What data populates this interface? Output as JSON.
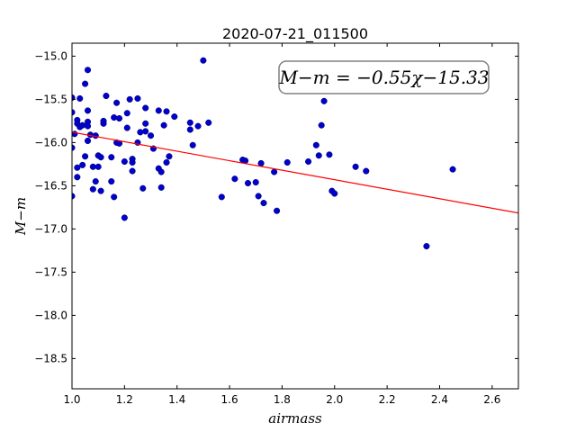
{
  "chart_data": {
    "type": "scatter",
    "title": "2020-07-21_011500",
    "xlabel": "airmass",
    "ylabel": "M−m",
    "xlim": [
      1.0,
      2.7
    ],
    "ylim": [
      -18.85,
      -14.85
    ],
    "x_ticks": [
      "1.0",
      "1.2",
      "1.4",
      "1.6",
      "1.8",
      "2.0",
      "2.2",
      "2.4",
      "2.6"
    ],
    "x_tick_values": [
      1.0,
      1.2,
      1.4,
      1.6,
      1.8,
      2.0,
      2.2,
      2.4,
      2.6
    ],
    "y_ticks": [
      "−15.0",
      "−15.5",
      "−16.0",
      "−16.5",
      "−17.0",
      "−17.5",
      "−18.0",
      "−18.5"
    ],
    "y_tick_values": [
      -15.0,
      -15.5,
      -16.0,
      -16.5,
      -17.0,
      -17.5,
      -18.0,
      -18.5
    ],
    "grid": false,
    "annotation": "M−m = −0.55χ−15.33",
    "annotation_position": "top-right",
    "fit": {
      "slope": -0.55,
      "intercept": -15.33,
      "color": "#ff0000"
    },
    "point_color": "#0000cc",
    "points": [
      [
        1.0,
        -15.48
      ],
      [
        1.0,
        -15.65
      ],
      [
        1.0,
        -16.06
      ],
      [
        1.0,
        -16.62
      ],
      [
        1.01,
        -15.9
      ],
      [
        1.02,
        -15.74
      ],
      [
        1.02,
        -15.78
      ],
      [
        1.03,
        -15.49
      ],
      [
        1.03,
        -15.82
      ],
      [
        1.02,
        -16.29
      ],
      [
        1.02,
        -16.4
      ],
      [
        1.04,
        -15.8
      ],
      [
        1.04,
        -16.26
      ],
      [
        1.05,
        -16.16
      ],
      [
        1.05,
        -15.32
      ],
      [
        1.06,
        -15.16
      ],
      [
        1.06,
        -15.63
      ],
      [
        1.06,
        -15.76
      ],
      [
        1.06,
        -15.81
      ],
      [
        1.07,
        -15.91
      ],
      [
        1.06,
        -15.98
      ],
      [
        1.08,
        -16.28
      ],
      [
        1.08,
        -16.54
      ],
      [
        1.09,
        -16.45
      ],
      [
        1.09,
        -15.92
      ],
      [
        1.1,
        -16.28
      ],
      [
        1.1,
        -16.15
      ],
      [
        1.11,
        -16.17
      ],
      [
        1.12,
        -15.78
      ],
      [
        1.12,
        -15.75
      ],
      [
        1.11,
        -16.56
      ],
      [
        1.13,
        -15.46
      ],
      [
        1.15,
        -16.45
      ],
      [
        1.15,
        -16.17
      ],
      [
        1.16,
        -15.71
      ],
      [
        1.16,
        -16.63
      ],
      [
        1.17,
        -15.54
      ],
      [
        1.17,
        -16.0
      ],
      [
        1.18,
        -15.72
      ],
      [
        1.18,
        -16.01
      ],
      [
        1.2,
        -16.87
      ],
      [
        1.2,
        -16.22
      ],
      [
        1.21,
        -15.66
      ],
      [
        1.21,
        -15.83
      ],
      [
        1.22,
        -15.5
      ],
      [
        1.23,
        -16.19
      ],
      [
        1.23,
        -16.23
      ],
      [
        1.23,
        -16.33
      ],
      [
        1.25,
        -15.49
      ],
      [
        1.25,
        -16.0
      ],
      [
        1.26,
        -15.88
      ],
      [
        1.27,
        -16.53
      ],
      [
        1.28,
        -15.6
      ],
      [
        1.28,
        -15.78
      ],
      [
        1.28,
        -15.87
      ],
      [
        1.3,
        -15.92
      ],
      [
        1.31,
        -16.07
      ],
      [
        1.33,
        -15.63
      ],
      [
        1.33,
        -16.3
      ],
      [
        1.34,
        -16.34
      ],
      [
        1.34,
        -16.52
      ],
      [
        1.35,
        -15.8
      ],
      [
        1.36,
        -15.64
      ],
      [
        1.36,
        -16.23
      ],
      [
        1.37,
        -16.16
      ],
      [
        1.39,
        -15.7
      ],
      [
        1.45,
        -15.77
      ],
      [
        1.45,
        -15.85
      ],
      [
        1.46,
        -16.03
      ],
      [
        1.48,
        -15.81
      ],
      [
        1.5,
        -15.05
      ],
      [
        1.52,
        -15.77
      ],
      [
        1.57,
        -16.63
      ],
      [
        1.62,
        -16.42
      ],
      [
        1.65,
        -16.2
      ],
      [
        1.66,
        -16.21
      ],
      [
        1.67,
        -16.47
      ],
      [
        1.7,
        -16.46
      ],
      [
        1.71,
        -16.62
      ],
      [
        1.72,
        -16.24
      ],
      [
        1.73,
        -16.7
      ],
      [
        1.77,
        -16.34
      ],
      [
        1.78,
        -16.79
      ],
      [
        1.82,
        -16.23
      ],
      [
        1.9,
        -16.22
      ],
      [
        1.93,
        -16.03
      ],
      [
        1.94,
        -16.15
      ],
      [
        1.95,
        -15.8
      ],
      [
        1.96,
        -15.52
      ],
      [
        1.98,
        -16.14
      ],
      [
        1.99,
        -16.56
      ],
      [
        2.0,
        -16.59
      ],
      [
        2.08,
        -16.28
      ],
      [
        2.12,
        -16.33
      ],
      [
        2.35,
        -17.2
      ],
      [
        2.45,
        -16.31
      ]
    ]
  }
}
